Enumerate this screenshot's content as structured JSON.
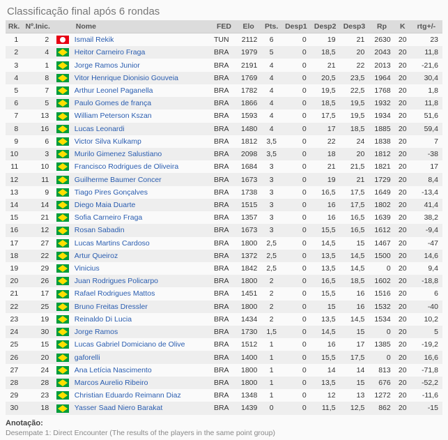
{
  "title": "Classificação final após 6 rondas",
  "columns": [
    "Rk.",
    "Nº.Inic.",
    "",
    "Nome",
    "FED",
    "Elo",
    "Pts.",
    "Desp1",
    "Desp2",
    "Desp3",
    "Rp",
    "K",
    "rtg+/-"
  ],
  "rows": [
    {
      "rk": 1,
      "sno": 2,
      "flag": "tun",
      "name": "Ismail Rekik",
      "fed": "TUN",
      "elo": "2112",
      "pts": "6",
      "d1": "0",
      "d2": "19",
      "d3": "21",
      "rp": "2630",
      "k": "20",
      "rtg": "23"
    },
    {
      "rk": 2,
      "sno": 4,
      "flag": "bra",
      "name": "Heitor Carneiro Fraga",
      "fed": "BRA",
      "elo": "1979",
      "pts": "5",
      "d1": "0",
      "d2": "18,5",
      "d3": "20",
      "rp": "2043",
      "k": "20",
      "rtg": "11,8"
    },
    {
      "rk": 3,
      "sno": 1,
      "flag": "bra",
      "name": "Jorge Ramos Junior",
      "fed": "BRA",
      "elo": "2191",
      "pts": "4",
      "d1": "0",
      "d2": "21",
      "d3": "22",
      "rp": "2013",
      "k": "20",
      "rtg": "-21,6"
    },
    {
      "rk": 4,
      "sno": 8,
      "flag": "bra",
      "name": "Vitor Henrique Dionisio Gouveia",
      "fed": "BRA",
      "elo": "1769",
      "pts": "4",
      "d1": "0",
      "d2": "20,5",
      "d3": "23,5",
      "rp": "1964",
      "k": "20",
      "rtg": "30,4"
    },
    {
      "rk": 5,
      "sno": 7,
      "flag": "bra",
      "name": "Arthur Leonel Paganella",
      "fed": "BRA",
      "elo": "1782",
      "pts": "4",
      "d1": "0",
      "d2": "19,5",
      "d3": "22,5",
      "rp": "1768",
      "k": "20",
      "rtg": "1,8"
    },
    {
      "rk": 6,
      "sno": 5,
      "flag": "bra",
      "name": "Paulo Gomes de frança",
      "fed": "BRA",
      "elo": "1866",
      "pts": "4",
      "d1": "0",
      "d2": "18,5",
      "d3": "19,5",
      "rp": "1932",
      "k": "20",
      "rtg": "11,8"
    },
    {
      "rk": 7,
      "sno": 13,
      "flag": "bra",
      "name": "William Peterson Kszan",
      "fed": "BRA",
      "elo": "1593",
      "pts": "4",
      "d1": "0",
      "d2": "17,5",
      "d3": "19,5",
      "rp": "1934",
      "k": "20",
      "rtg": "51,6"
    },
    {
      "rk": 8,
      "sno": 16,
      "flag": "bra",
      "name": "Lucas Leonardi",
      "fed": "BRA",
      "elo": "1480",
      "pts": "4",
      "d1": "0",
      "d2": "17",
      "d3": "18,5",
      "rp": "1885",
      "k": "20",
      "rtg": "59,4"
    },
    {
      "rk": 9,
      "sno": 6,
      "flag": "bra",
      "name": "Victor Silva Kulkamp",
      "fed": "BRA",
      "elo": "1812",
      "pts": "3,5",
      "d1": "0",
      "d2": "22",
      "d3": "24",
      "rp": "1838",
      "k": "20",
      "rtg": "7"
    },
    {
      "rk": 10,
      "sno": 3,
      "flag": "bra",
      "name": "Murilo Gimenez Salustiano",
      "fed": "BRA",
      "elo": "2098",
      "pts": "3,5",
      "d1": "0",
      "d2": "18",
      "d3": "20",
      "rp": "1812",
      "k": "20",
      "rtg": "-38"
    },
    {
      "rk": 11,
      "sno": 10,
      "flag": "bra",
      "name": "Francisco Rodrigues de Oliveira",
      "fed": "BRA",
      "elo": "1684",
      "pts": "3",
      "d1": "0",
      "d2": "21",
      "d3": "21,5",
      "rp": "1821",
      "k": "20",
      "rtg": "17"
    },
    {
      "rk": 12,
      "sno": 11,
      "flag": "bra",
      "name": "Guilherme Baumer Concer",
      "fed": "BRA",
      "elo": "1673",
      "pts": "3",
      "d1": "0",
      "d2": "19",
      "d3": "21",
      "rp": "1729",
      "k": "20",
      "rtg": "8,4"
    },
    {
      "rk": 13,
      "sno": 9,
      "flag": "bra",
      "name": "Tiago Pires Gonçalves",
      "fed": "BRA",
      "elo": "1738",
      "pts": "3",
      "d1": "0",
      "d2": "16,5",
      "d3": "17,5",
      "rp": "1649",
      "k": "20",
      "rtg": "-13,4"
    },
    {
      "rk": 14,
      "sno": 14,
      "flag": "bra",
      "name": "Diego Maia Duarte",
      "fed": "BRA",
      "elo": "1515",
      "pts": "3",
      "d1": "0",
      "d2": "16",
      "d3": "17,5",
      "rp": "1802",
      "k": "20",
      "rtg": "41,4"
    },
    {
      "rk": 15,
      "sno": 21,
      "flag": "bra",
      "name": "Sofia Carneiro Fraga",
      "fed": "BRA",
      "elo": "1357",
      "pts": "3",
      "d1": "0",
      "d2": "16",
      "d3": "16,5",
      "rp": "1639",
      "k": "20",
      "rtg": "38,2"
    },
    {
      "rk": 16,
      "sno": 12,
      "flag": "bra",
      "name": "Rosan Sabadin",
      "fed": "BRA",
      "elo": "1673",
      "pts": "3",
      "d1": "0",
      "d2": "15,5",
      "d3": "16,5",
      "rp": "1612",
      "k": "20",
      "rtg": "-9,4"
    },
    {
      "rk": 17,
      "sno": 27,
      "flag": "bra",
      "name": "Lucas Martins Cardoso",
      "fed": "BRA",
      "elo": "1800",
      "pts": "2,5",
      "d1": "0",
      "d2": "14,5",
      "d3": "15",
      "rp": "1467",
      "k": "20",
      "rtg": "-47"
    },
    {
      "rk": 18,
      "sno": 22,
      "flag": "bra",
      "name": "Artur Queiroz",
      "fed": "BRA",
      "elo": "1372",
      "pts": "2,5",
      "d1": "0",
      "d2": "13,5",
      "d3": "14,5",
      "rp": "1500",
      "k": "20",
      "rtg": "14,6"
    },
    {
      "rk": 19,
      "sno": 29,
      "flag": "bra",
      "name": "Vinicius",
      "fed": "BRA",
      "elo": "1842",
      "pts": "2,5",
      "d1": "0",
      "d2": "13,5",
      "d3": "14,5",
      "rp": "0",
      "k": "20",
      "rtg": "9,4"
    },
    {
      "rk": 20,
      "sno": 26,
      "flag": "bra",
      "name": "Juan Rodrigues Policarpo",
      "fed": "BRA",
      "elo": "1800",
      "pts": "2",
      "d1": "0",
      "d2": "16,5",
      "d3": "18,5",
      "rp": "1602",
      "k": "20",
      "rtg": "-18,8"
    },
    {
      "rk": 21,
      "sno": 17,
      "flag": "bra",
      "name": "Rafael Rodrigues Mattos",
      "fed": "BRA",
      "elo": "1451",
      "pts": "2",
      "d1": "0",
      "d2": "15,5",
      "d3": "16",
      "rp": "1516",
      "k": "20",
      "rtg": "6"
    },
    {
      "rk": 22,
      "sno": 25,
      "flag": "bra",
      "name": "Bruno Freitas Dressler",
      "fed": "BRA",
      "elo": "1800",
      "pts": "2",
      "d1": "0",
      "d2": "15",
      "d3": "16",
      "rp": "1532",
      "k": "20",
      "rtg": "-40"
    },
    {
      "rk": 23,
      "sno": 19,
      "flag": "bra",
      "name": "Reinaldo Di Lucia",
      "fed": "BRA",
      "elo": "1434",
      "pts": "2",
      "d1": "0",
      "d2": "13,5",
      "d3": "14,5",
      "rp": "1534",
      "k": "20",
      "rtg": "10,2"
    },
    {
      "rk": 24,
      "sno": 30,
      "flag": "bra",
      "name": "Jorge Ramos",
      "fed": "BRA",
      "elo": "1730",
      "pts": "1,5",
      "d1": "0",
      "d2": "14,5",
      "d3": "15",
      "rp": "0",
      "k": "20",
      "rtg": "5"
    },
    {
      "rk": 25,
      "sno": 15,
      "flag": "bra",
      "name": "Lucas Gabriel Domiciano de Olive",
      "fed": "BRA",
      "elo": "1512",
      "pts": "1",
      "d1": "0",
      "d2": "16",
      "d3": "17",
      "rp": "1385",
      "k": "20",
      "rtg": "-19,2"
    },
    {
      "rk": 26,
      "sno": 20,
      "flag": "bra",
      "name": "gaforelli",
      "fed": "BRA",
      "elo": "1400",
      "pts": "1",
      "d1": "0",
      "d2": "15,5",
      "d3": "17,5",
      "rp": "0",
      "k": "20",
      "rtg": "16,6"
    },
    {
      "rk": 27,
      "sno": 24,
      "flag": "bra",
      "name": "Ana Letícia Nascimento",
      "fed": "BRA",
      "elo": "1800",
      "pts": "1",
      "d1": "0",
      "d2": "14",
      "d3": "14",
      "rp": "813",
      "k": "20",
      "rtg": "-71,8"
    },
    {
      "rk": 28,
      "sno": 28,
      "flag": "bra",
      "name": "Marcos Aurelio Ribeiro",
      "fed": "BRA",
      "elo": "1800",
      "pts": "1",
      "d1": "0",
      "d2": "13,5",
      "d3": "15",
      "rp": "676",
      "k": "20",
      "rtg": "-52,2"
    },
    {
      "rk": 29,
      "sno": 23,
      "flag": "bra",
      "name": "Christian Eduardo Reimann Diaz",
      "fed": "BRA",
      "elo": "1348",
      "pts": "1",
      "d1": "0",
      "d2": "12",
      "d3": "13",
      "rp": "1272",
      "k": "20",
      "rtg": "-11,6"
    },
    {
      "rk": 30,
      "sno": 18,
      "flag": "bra",
      "name": "Yasser Saad Niero Barakat",
      "fed": "BRA",
      "elo": "1439",
      "pts": "0",
      "d1": "0",
      "d2": "11,5",
      "d3": "12,5",
      "rp": "862",
      "k": "20",
      "rtg": "-15"
    }
  ],
  "annotation": {
    "title": "Anotação:",
    "body": "Desempate 1: Direct Encounter (The results of the players in the same point group)"
  }
}
